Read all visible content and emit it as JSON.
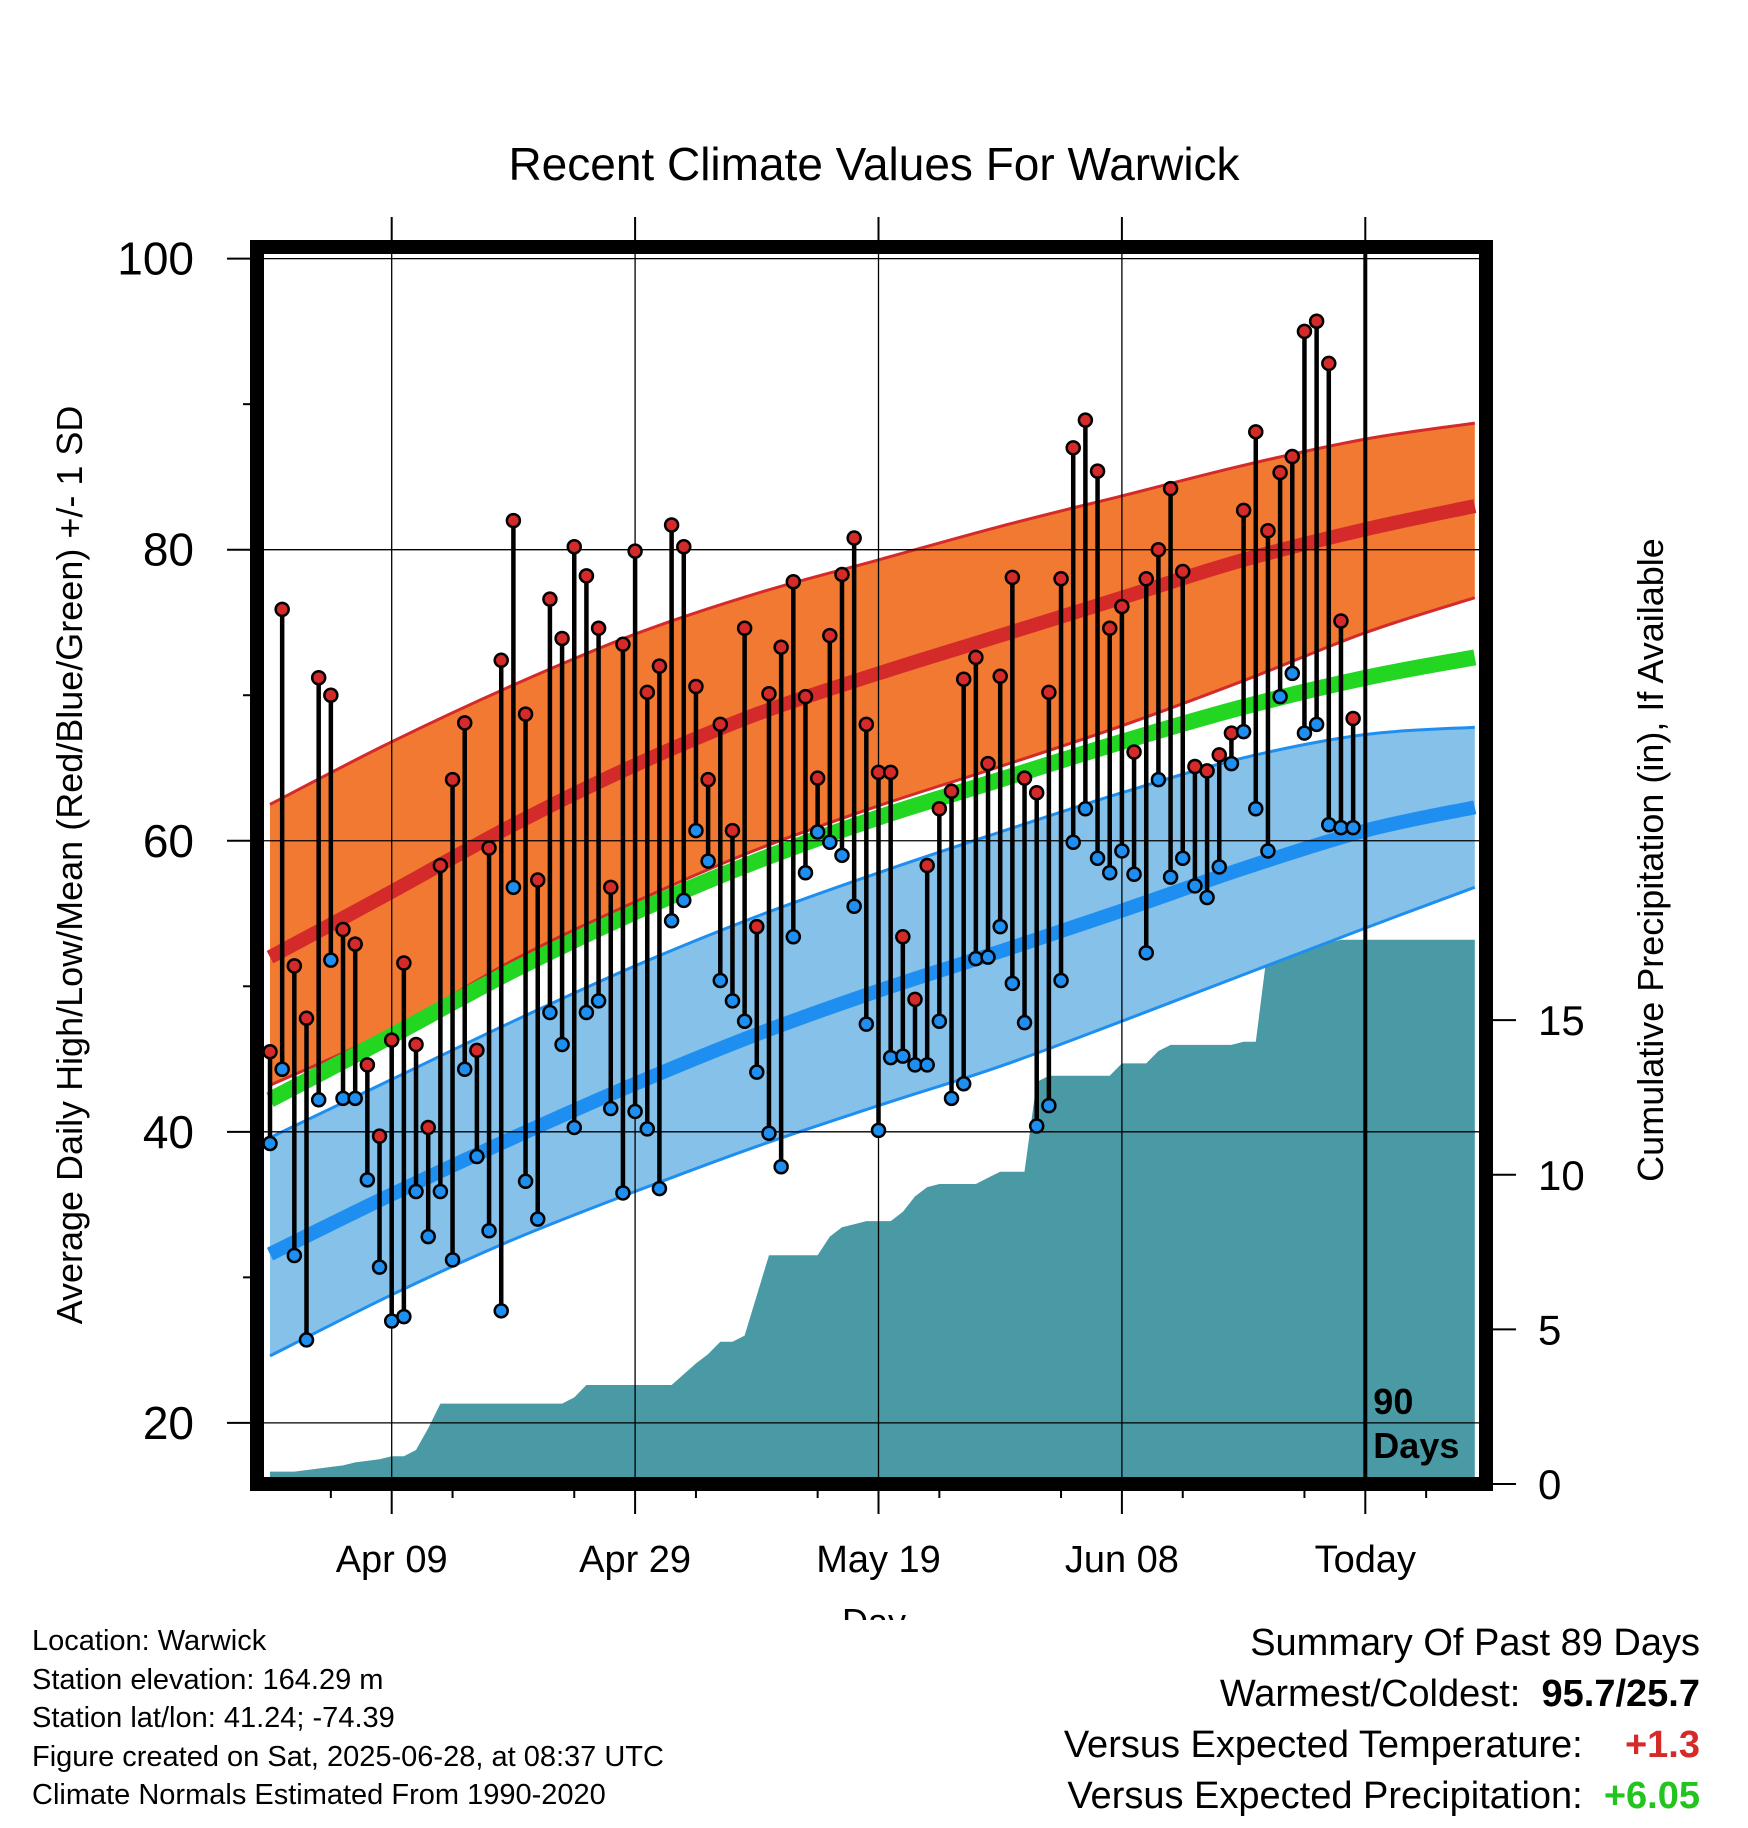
{
  "chart_data": {
    "type": "line",
    "title": "Recent Climate Values For Warwick",
    "xlabel": "Day",
    "ylabel": "Average Daily High/Low/Mean (Red/Blue/Green) +/- 1 SD",
    "y2label": "Cumulative Precipitation (in), If Available",
    "x_ticks": [
      {
        "day": 10,
        "label": "Apr 09"
      },
      {
        "day": 30,
        "label": "Apr 29"
      },
      {
        "day": 50,
        "label": "May 19"
      },
      {
        "day": 70,
        "label": "Jun 08"
      },
      {
        "day": 90,
        "label": "Today"
      }
    ],
    "x_range": [
      -1,
      100
    ],
    "y_ticks": [
      20,
      40,
      60,
      80,
      100
    ],
    "ylim": [
      15.8,
      100.8
    ],
    "y2_ticks": [
      0,
      5,
      10,
      15
    ],
    "y2lim": [
      0,
      40
    ],
    "grid": true,
    "today_marker": {
      "day": 90,
      "label_line1": "90",
      "label_line2": "Days"
    },
    "series": [
      {
        "name": "Normal High",
        "color": "#d42a2a",
        "x": [
          0,
          10,
          20,
          30,
          40,
          50,
          60,
          70,
          80,
          90,
          99
        ],
        "values": [
          52,
          56.5,
          61.1,
          65.2,
          68.7,
          71.5,
          74.1,
          76.7,
          79.3,
          81.4,
          83
        ]
      },
      {
        "name": "Normal High +1 SD",
        "color": "#d42a2a",
        "x": [
          0,
          10,
          20,
          30,
          40,
          50,
          60,
          70,
          80,
          90,
          99
        ],
        "values": [
          62.5,
          66.8,
          70.7,
          74.2,
          77,
          79.3,
          81.6,
          83.7,
          85.8,
          87.6,
          88.7
        ]
      },
      {
        "name": "Normal High -1 SD",
        "color": "#d42a2a",
        "x": [
          0,
          10,
          20,
          30,
          40,
          50,
          60,
          70,
          80,
          90,
          99
        ],
        "values": [
          43.2,
          47,
          51.8,
          55.8,
          59.4,
          62.4,
          65.1,
          67.9,
          71,
          74.3,
          76.7
        ]
      },
      {
        "name": "Normal Mean",
        "color": "#22d622",
        "x": [
          0,
          10,
          20,
          30,
          40,
          50,
          60,
          70,
          80,
          90,
          99
        ],
        "values": [
          42.2,
          46.6,
          51.1,
          55.1,
          58.6,
          61.6,
          64.2,
          66.8,
          69.2,
          71.2,
          72.6
        ]
      },
      {
        "name": "Normal Low",
        "color": "#1e8ff0",
        "x": [
          0,
          10,
          20,
          30,
          40,
          50,
          60,
          70,
          80,
          90,
          99
        ],
        "values": [
          31.6,
          35.7,
          39.6,
          43.3,
          46.7,
          49.7,
          52.4,
          55.2,
          58.1,
          60.7,
          62.3
        ]
      },
      {
        "name": "Normal Low +1 SD",
        "color": "#1e8ff0",
        "x": [
          0,
          10,
          20,
          30,
          40,
          50,
          60,
          70,
          80,
          90,
          99
        ],
        "values": [
          39.6,
          43.6,
          47.6,
          51.4,
          54.8,
          57.8,
          60.6,
          63.3,
          65.7,
          67.3,
          67.8
        ]
      },
      {
        "name": "Normal Low -1 SD",
        "color": "#1e8ff0",
        "x": [
          0,
          10,
          20,
          30,
          40,
          50,
          60,
          70,
          80,
          90,
          99
        ],
        "values": [
          24.6,
          28.8,
          32.6,
          35.9,
          39,
          41.8,
          44.5,
          47.6,
          50.8,
          54,
          56.8
        ]
      }
    ],
    "daily_high": [
      45.5,
      75.9,
      51.4,
      47.8,
      71.2,
      70,
      53.9,
      52.9,
      44.6,
      39.7,
      46.3,
      51.6,
      46,
      40.3,
      58.3,
      64.2,
      68.1,
      45.6,
      59.5,
      72.4,
      82,
      68.7,
      57.3,
      76.6,
      73.9,
      80.2,
      78.2,
      74.6,
      56.8,
      73.5,
      79.9,
      70.2,
      72,
      81.7,
      80.2,
      70.6,
      64.2,
      68,
      60.7,
      74.6,
      54.1,
      70.1,
      73.3,
      77.8,
      69.9,
      64.3,
      74.1,
      78.3,
      80.8,
      68,
      64.7,
      64.7,
      53.4,
      49.1,
      58.3,
      62.2,
      63.4,
      71.1,
      72.6,
      65.3,
      71.3,
      78.1,
      64.3,
      63.3,
      70.2,
      78,
      87,
      88.9,
      85.4,
      74.6,
      76.1,
      66.1,
      78,
      80,
      84.2,
      78.5,
      65.1,
      64.8,
      65.9,
      67.4,
      82.7,
      88.1,
      81.3,
      85.3,
      86.4,
      95,
      95.7,
      92.8,
      75.1,
      68.4
    ],
    "daily_low": [
      39.2,
      44.3,
      31.5,
      25.7,
      42.2,
      51.8,
      42.3,
      42.3,
      36.7,
      30.7,
      27,
      27.3,
      35.9,
      32.8,
      35.9,
      31.2,
      44.3,
      38.3,
      33.2,
      27.7,
      56.8,
      36.6,
      34,
      48.2,
      46,
      40.3,
      48.2,
      49,
      41.6,
      35.8,
      41.4,
      40.2,
      36.1,
      54.5,
      55.9,
      60.7,
      58.6,
      50.4,
      49,
      47.6,
      44.1,
      39.9,
      37.6,
      53.4,
      57.8,
      60.6,
      59.9,
      59,
      55.5,
      47.4,
      40.1,
      45.1,
      45.2,
      44.6,
      44.6,
      47.6,
      42.3,
      43.3,
      51.9,
      52,
      54.1,
      50.2,
      47.5,
      40.4,
      41.8,
      50.4,
      59.9,
      62.2,
      58.8,
      57.8,
      59.3,
      57.7,
      52.3,
      64.2,
      57.5,
      58.8,
      56.9,
      56.1,
      58.2,
      65.3,
      67.5,
      62.2,
      59.3,
      69.9,
      71.5,
      67.4,
      68,
      61.1,
      60.9,
      60.9
    ],
    "precip_cumulative": {
      "x": [
        0,
        2,
        4,
        6,
        7,
        9,
        10,
        11,
        12,
        13,
        14,
        15,
        16,
        17,
        19,
        24,
        25,
        26,
        29,
        30,
        31,
        32,
        33,
        35,
        36,
        37,
        38,
        39,
        40,
        41,
        42,
        43,
        44,
        45,
        46,
        47,
        48,
        49,
        50,
        51,
        52,
        53,
        54,
        55,
        56,
        57,
        58,
        59,
        60,
        61,
        62,
        63,
        64,
        65,
        66,
        67,
        68,
        69,
        70,
        71,
        72,
        73,
        74,
        75,
        76,
        77,
        78,
        79,
        80,
        81,
        82,
        83,
        84,
        85,
        86,
        87,
        88,
        89,
        99
      ],
      "values": [
        0.4,
        0.4,
        0.5,
        0.6,
        0.7,
        0.8,
        0.9,
        0.9,
        1.1,
        1.8,
        2.6,
        2.6,
        2.6,
        2.6,
        2.6,
        2.6,
        2.8,
        3.2,
        3.2,
        3.2,
        3.2,
        3.2,
        3.2,
        3.9,
        4.2,
        4.6,
        4.6,
        4.8,
        6.1,
        7.4,
        7.4,
        7.4,
        7.4,
        7.4,
        8,
        8.3,
        8.4,
        8.5,
        8.5,
        8.5,
        8.8,
        9.3,
        9.6,
        9.7,
        9.7,
        9.7,
        9.7,
        9.9,
        10.1,
        10.1,
        10.1,
        13,
        13.2,
        13.2,
        13.2,
        13.2,
        13.2,
        13.2,
        13.6,
        13.6,
        13.6,
        14,
        14.2,
        14.2,
        14.2,
        14.2,
        14.2,
        14.2,
        14.3,
        14.3,
        17.4,
        17.4,
        17.4,
        17.5,
        17.5,
        17.5,
        17.6,
        17.6,
        17.6
      ]
    }
  },
  "footer": {
    "location": "Location: Warwick",
    "elevation": "Station elevation: 164.29 m",
    "latlon": "Station lat/lon: 41.24; -74.39",
    "created": "Figure created on Sat, 2025-06-28, at 08:37 UTC",
    "normals": "Climate Normals Estimated From 1990-2020"
  },
  "summary": {
    "heading": "Summary Of Past 89 Days",
    "warmest_label": "Warmest/Coldest:",
    "warmest_value": "95.7",
    "warmest_sep": "/",
    "coldest_value": "25.7",
    "temp_label": "Versus Expected Temperature:",
    "temp_value": "+1.3",
    "temp_color": "#d42a2a",
    "precip_label": "Versus Expected Precipitation:",
    "precip_value": "+6.05",
    "precip_color": "#22c41e"
  }
}
